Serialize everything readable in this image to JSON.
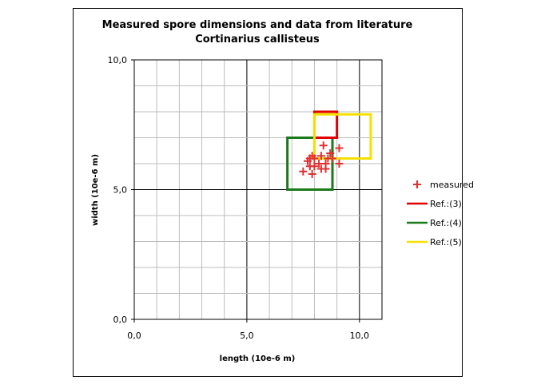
{
  "chart_data": {
    "type": "scatter",
    "title": "Measured spore dimensions and data from literature",
    "subtitle": "Cortinarius callisteus",
    "xlabel": "length (10e-6 m)",
    "ylabel": "width (10e-6 m)",
    "xlim": [
      0,
      11
    ],
    "ylim": [
      0,
      10
    ],
    "grid": true,
    "grid_minor_step": 1,
    "x_ticks": [
      "0,0",
      "5,0",
      "10,0"
    ],
    "y_ticks": [
      "0,0",
      "5,0",
      "10,0"
    ],
    "legend_position": "right",
    "series": [
      {
        "name": "measured",
        "kind": "points",
        "marker": "plus",
        "color": "#e03030",
        "points": [
          [
            7.5,
            5.7
          ],
          [
            7.7,
            6.1
          ],
          [
            7.8,
            5.9
          ],
          [
            7.9,
            6.3
          ],
          [
            7.9,
            5.6
          ],
          [
            8.0,
            6.2
          ],
          [
            8.0,
            5.9
          ],
          [
            8.2,
            6.0
          ],
          [
            8.3,
            6.3
          ],
          [
            8.3,
            5.8
          ],
          [
            8.4,
            6.7
          ],
          [
            8.5,
            6.0
          ],
          [
            8.5,
            5.8
          ],
          [
            8.6,
            6.2
          ],
          [
            8.7,
            6.4
          ],
          [
            8.8,
            6.2
          ],
          [
            9.1,
            6.6
          ],
          [
            9.1,
            6.0
          ],
          [
            7.8,
            6.2
          ]
        ]
      },
      {
        "name": "Ref.:(3)",
        "kind": "range",
        "color": "#e00000",
        "x_range": [
          8.0,
          9.0
        ],
        "y_range": [
          7.0,
          8.0
        ]
      },
      {
        "name": "Ref.:(4)",
        "kind": "range",
        "color": "#1a7a1a",
        "x_range": [
          6.8,
          8.8
        ],
        "y_range": [
          5.0,
          7.0
        ]
      },
      {
        "name": "Ref.:(5)",
        "kind": "range",
        "color": "#f5e000",
        "x_range": [
          8.0,
          10.5
        ],
        "y_range": [
          6.2,
          7.9
        ]
      }
    ]
  }
}
